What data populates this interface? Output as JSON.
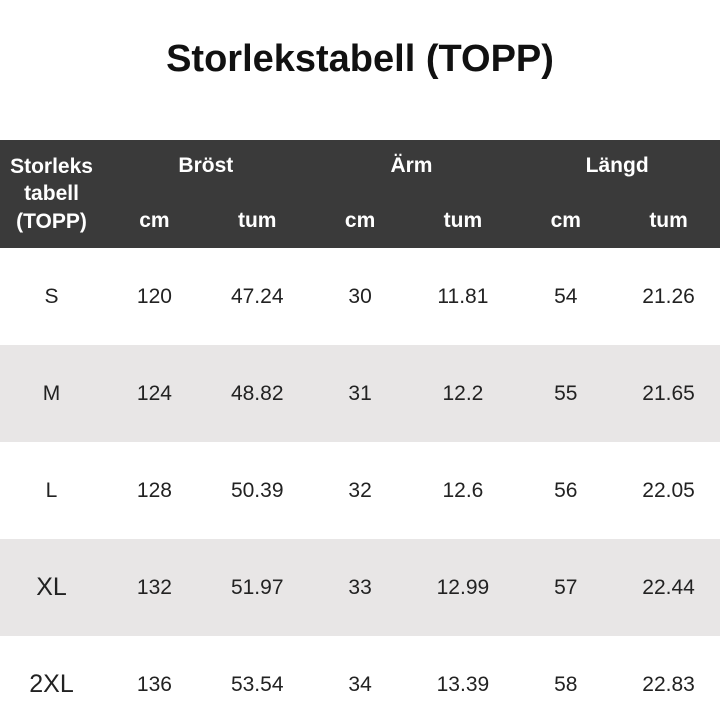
{
  "title": "Storlekstabell (TOPP)",
  "table": {
    "corner": "Storleks tabell (TOPP)",
    "groups": [
      "Bröst",
      "Ärm",
      "Längd"
    ],
    "units": [
      "cm",
      "tum",
      "cm",
      "tum",
      "cm",
      "tum"
    ],
    "rows": [
      [
        "S",
        "120",
        "47.24",
        "30",
        "11.81",
        "54",
        "21.26"
      ],
      [
        "M",
        "124",
        "48.82",
        "31",
        "12.2",
        "55",
        "21.65"
      ],
      [
        "L",
        "128",
        "50.39",
        "32",
        "12.6",
        "56",
        "22.05"
      ],
      [
        "XL",
        "132",
        "51.97",
        "33",
        "12.99",
        "57",
        "22.44"
      ],
      [
        "2XL",
        "136",
        "53.54",
        "34",
        "13.39",
        "58",
        "22.83"
      ]
    ]
  }
}
